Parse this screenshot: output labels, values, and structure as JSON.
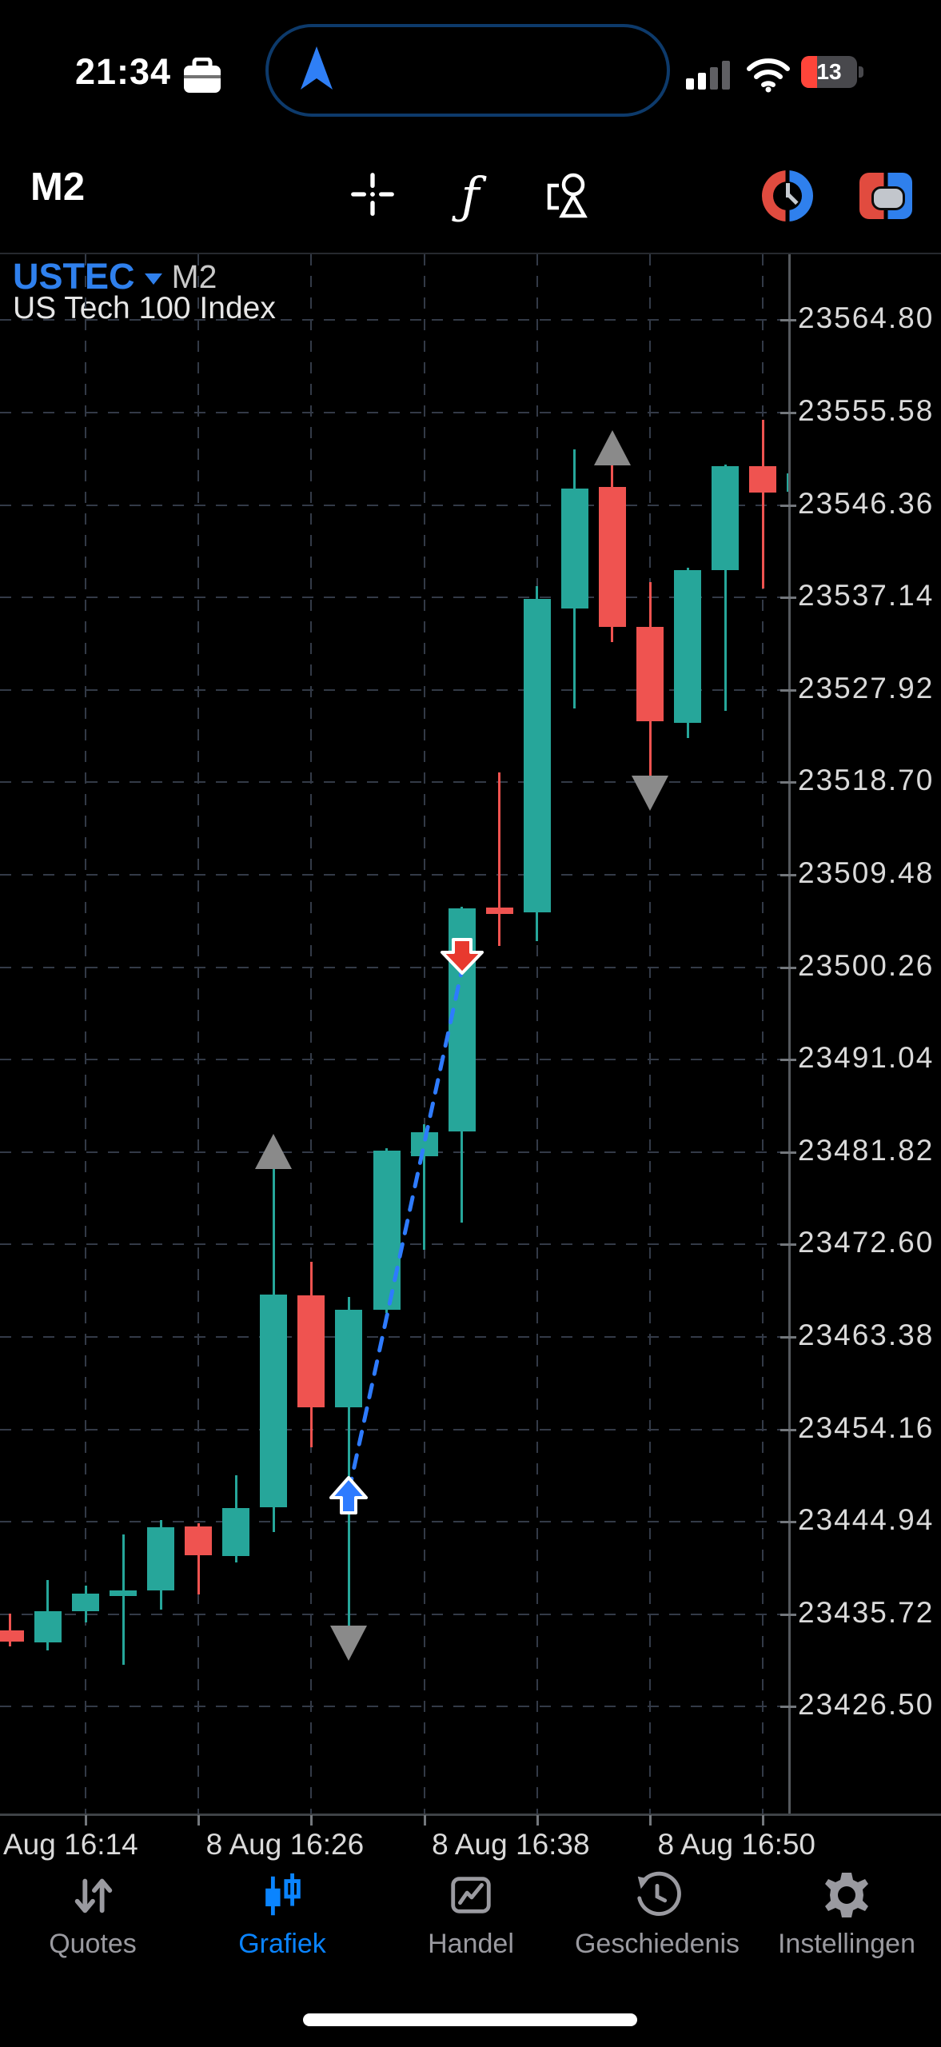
{
  "status_bar": {
    "time": "21:34",
    "battery_level": "13"
  },
  "toolbar": {
    "timeframe_label": "M2",
    "indicators_glyph": "ƒ",
    "icons": [
      "crosshair-icon",
      "indicators-icon",
      "objects-icon",
      "chart-clock-app-icon",
      "red-blue-app-icon"
    ]
  },
  "chart_header": {
    "symbol": "USTEC",
    "timeframe": "M2",
    "description": "US Tech 100 Index"
  },
  "chart_data": {
    "type": "candlestick",
    "symbol": "USTEC",
    "period": "M2",
    "title": "US Tech 100 Index",
    "y_range": [
      23426.5,
      23564.8
    ],
    "grid": true,
    "y_axis_labels": [
      "23564.80",
      "23555.58",
      "23546.36",
      "23537.14",
      "23527.92",
      "23518.70",
      "23509.48",
      "23500.26",
      "23491.04",
      "23481.82",
      "23472.60",
      "23463.38",
      "23454.16",
      "23444.94",
      "23435.72",
      "23426.50"
    ],
    "x_axis_labels": [
      {
        "text": "Aug 16:14",
        "candle": 2
      },
      {
        "text": "8 Aug 16:26",
        "candle": 8
      },
      {
        "text": "8 Aug 16:38",
        "candle": 14
      },
      {
        "text": "8 Aug 16:50",
        "candle": 20
      }
    ],
    "candles": [
      {
        "t": "16:10",
        "o": 23434.1,
        "h": 23435.8,
        "l": 23432.5,
        "c": 23433.0
      },
      {
        "t": "16:12",
        "o": 23432.9,
        "h": 23439.1,
        "l": 23432.1,
        "c": 23436.0
      },
      {
        "t": "16:14",
        "o": 23436.0,
        "h": 23438.6,
        "l": 23434.9,
        "c": 23437.8
      },
      {
        "t": "16:16",
        "o": 23437.5,
        "h": 23443.7,
        "l": 23430.7,
        "c": 23438.1
      },
      {
        "t": "16:18",
        "o": 23438.1,
        "h": 23445.1,
        "l": 23436.2,
        "c": 23444.4
      },
      {
        "t": "16:20",
        "o": 23444.5,
        "h": 23444.8,
        "l": 23437.7,
        "c": 23441.6
      },
      {
        "t": "16:22",
        "o": 23441.5,
        "h": 23449.6,
        "l": 23440.9,
        "c": 23446.3
      },
      {
        "t": "16:24",
        "o": 23446.4,
        "h": 23480.4,
        "l": 23443.9,
        "c": 23467.6
      },
      {
        "t": "16:26",
        "o": 23467.5,
        "h": 23470.9,
        "l": 23452.4,
        "c": 23456.4
      },
      {
        "t": "16:28",
        "o": 23456.4,
        "h": 23467.4,
        "l": 23434.6,
        "c": 23466.1
      },
      {
        "t": "16:30",
        "o": 23466.1,
        "h": 23482.2,
        "l": 23465.8,
        "c": 23482.0
      },
      {
        "t": "16:32",
        "o": 23481.4,
        "h": 23484.6,
        "l": 23472.1,
        "c": 23483.8
      },
      {
        "t": "16:34",
        "o": 23483.9,
        "h": 23506.3,
        "l": 23474.8,
        "c": 23506.1
      },
      {
        "t": "16:36",
        "o": 23506.2,
        "h": 23519.7,
        "l": 23502.4,
        "c": 23505.6
      },
      {
        "t": "16:38",
        "o": 23505.7,
        "h": 23538.3,
        "l": 23502.9,
        "c": 23537.0
      },
      {
        "t": "16:40",
        "o": 23536.0,
        "h": 23551.9,
        "l": 23526.1,
        "c": 23548.0
      },
      {
        "t": "16:42",
        "o": 23548.2,
        "h": 23550.6,
        "l": 23532.7,
        "c": 23534.2
      },
      {
        "t": "16:44",
        "o": 23534.2,
        "h": 23538.7,
        "l": 23519.4,
        "c": 23524.8
      },
      {
        "t": "16:46",
        "o": 23524.6,
        "h": 23540.1,
        "l": 23523.1,
        "c": 23539.9
      },
      {
        "t": "16:48",
        "o": 23539.9,
        "h": 23550.4,
        "l": 23525.8,
        "c": 23550.2
      },
      {
        "t": "16:50",
        "o": 23550.2,
        "h": 23554.9,
        "l": 23538.0,
        "c": 23547.6
      },
      {
        "t": "16:52",
        "o": 23547.7,
        "h": 23549.8,
        "l": 23547.5,
        "c": 23549.5
      }
    ],
    "markers": [
      {
        "type": "triangle-up",
        "candle": 7,
        "price": 23483.6,
        "color": "#8a8a8a"
      },
      {
        "type": "arrow-up",
        "candle": 9,
        "price": 23449.4,
        "color": "#2e7bff"
      },
      {
        "type": "triangle-down",
        "candle": 9,
        "price": 23431.1,
        "color": "#8a8a8a"
      },
      {
        "type": "arrow-down",
        "candle": 12,
        "price": 23499.6,
        "color": "#e8392e"
      },
      {
        "type": "triangle-up",
        "candle": 16,
        "price": 23553.8,
        "color": "#8a8a8a"
      },
      {
        "type": "triangle-down",
        "candle": 17,
        "price": 23515.9,
        "color": "#8a8a8a"
      }
    ],
    "trendline": {
      "from": {
        "candle": 9,
        "price": 23448.0
      },
      "to": {
        "candle": 12,
        "price": 23500.0
      },
      "color": "#2e7bff",
      "style": "dashed"
    },
    "colors": {
      "bull": "#26a69a",
      "bear": "#ef5350",
      "grid": "#333a47",
      "background": "#000000",
      "accent": "#2f80ed"
    }
  },
  "bottom_nav": {
    "items": [
      {
        "label": "Quotes",
        "active": false
      },
      {
        "label": "Grafiek",
        "active": true
      },
      {
        "label": "Handel",
        "active": false
      },
      {
        "label": "Geschiedenis",
        "active": false
      },
      {
        "label": "Instellingen",
        "active": false
      }
    ],
    "active_color": "#0a84ff",
    "inactive_color": "#9a9aa0"
  }
}
